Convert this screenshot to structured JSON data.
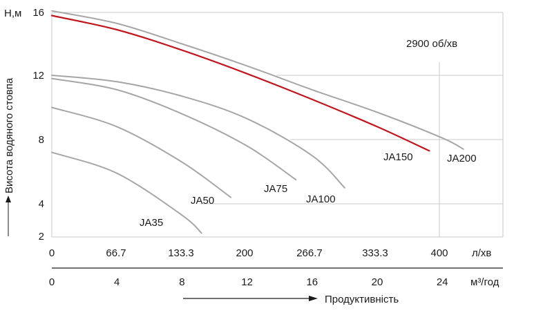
{
  "chart_data": {
    "type": "line",
    "y_label": "Висота водяного стовпа",
    "y_unit_label": "Н,м",
    "y_ticks": [
      2,
      4,
      8,
      12,
      16
    ],
    "ylim": [
      2,
      16
    ],
    "x_unit_lpm": "л/хв",
    "x_ticks_lpm": [
      "0",
      "66.7",
      "133.3",
      "200",
      "266.7",
      "333.3",
      "400"
    ],
    "x_unit_m3h": "м³/год",
    "x_ticks_m3h": [
      "0",
      "4",
      "8",
      "12",
      "16",
      "20",
      "24"
    ],
    "xlim_m3h": [
      0,
      27.5
    ],
    "x_title": "Продуктивність",
    "annotation": "2900 об/хв",
    "grid": "horizontal-partial",
    "series": [
      {
        "name": "JA35",
        "color": "#a6a6a6",
        "x": [
          0,
          4,
          8,
          9.2
        ],
        "y": [
          7.2,
          5.9,
          3.3,
          2.2
        ]
      },
      {
        "name": "JA50",
        "color": "#a6a6a6",
        "x": [
          0,
          4,
          8,
          11.0
        ],
        "y": [
          10.0,
          8.8,
          6.6,
          4.4
        ]
      },
      {
        "name": "JA75",
        "color": "#a6a6a6",
        "x": [
          0,
          4,
          8,
          12,
          15.0
        ],
        "y": [
          11.8,
          11.1,
          9.6,
          7.6,
          5.5
        ]
      },
      {
        "name": "JA100",
        "color": "#a6a6a6",
        "x": [
          0,
          4,
          8,
          12,
          16,
          18.0
        ],
        "y": [
          12.0,
          11.6,
          10.7,
          9.3,
          7.0,
          5.0
        ]
      },
      {
        "name": "JA150",
        "color": "#c0171f",
        "x": [
          0,
          4,
          8,
          12,
          16,
          20,
          23.2
        ],
        "y": [
          15.8,
          14.9,
          13.6,
          12.1,
          10.5,
          8.8,
          7.3
        ]
      },
      {
        "name": "JA200",
        "color": "#a6a6a6",
        "x": [
          0,
          4,
          8,
          12,
          16,
          20,
          24,
          25.3
        ],
        "y": [
          16.1,
          15.3,
          14.0,
          12.6,
          11.1,
          9.7,
          8.1,
          7.4
        ]
      }
    ]
  }
}
